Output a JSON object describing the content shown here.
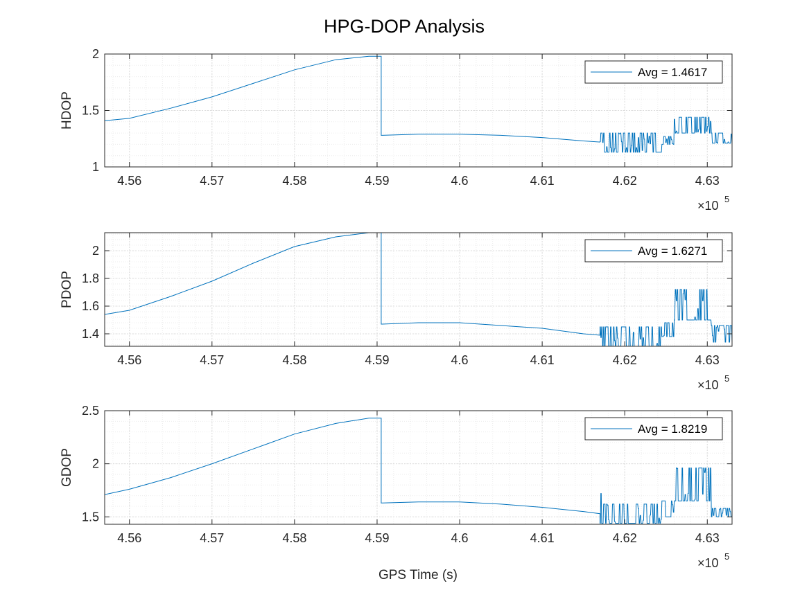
{
  "figure": {
    "title": "HPG-DOP Analysis",
    "xlabel": "GPS Time (s)"
  },
  "colors": {
    "line": "#0072BD",
    "axis": "#262626",
    "grid": "#dcdcdc",
    "minor_grid": "#ececec",
    "background": "#ffffff"
  },
  "chart_data": [
    {
      "type": "line",
      "title": "",
      "xlabel": "",
      "ylabel": "HDOP",
      "x_multiplier_label": "×10",
      "x_multiplier_exponent": "5",
      "xlim": [
        455700,
        463300
      ],
      "ylim": [
        1,
        2
      ],
      "xticks": [
        456000,
        457000,
        458000,
        459000,
        460000,
        461000,
        462000,
        463000
      ],
      "xtick_labels": [
        "4.56",
        "4.57",
        "4.58",
        "4.59",
        "4.6",
        "4.61",
        "4.62",
        "4.63"
      ],
      "yticks": [
        1,
        1.5,
        2
      ],
      "ytick_labels": [
        "1",
        "1.5",
        "2"
      ],
      "grid": true,
      "legend_position": "top-right",
      "series": [
        {
          "name": "Avg = 1.4617",
          "smooth": {
            "x": [
              455700,
              456000,
              456500,
              457000,
              457500,
              458000,
              458500,
              458900,
              459050
            ],
            "y": [
              1.41,
              1.43,
              1.52,
              1.62,
              1.74,
              1.86,
              1.95,
              1.98,
              1.98
            ]
          },
          "mid": {
            "x": [
              459060,
              459500,
              460000,
              460500,
              461000,
              461500,
              461700
            ],
            "y": [
              1.28,
              1.29,
              1.29,
              1.28,
              1.26,
              1.23,
              1.22
            ]
          },
          "noisy": {
            "x_start": 461700,
            "x_end": 463300,
            "segments": [
              {
                "from": 461700,
                "to": 461720,
                "base": 1.13,
                "alt": 1.3
              },
              {
                "from": 461720,
                "to": 462450,
                "base": 1.13,
                "alt": 1.3
              },
              {
                "from": 462450,
                "to": 462600,
                "base": 1.2,
                "alt": 1.27
              },
              {
                "from": 462600,
                "to": 463050,
                "base": 1.3,
                "alt": 1.44
              },
              {
                "from": 463050,
                "to": 463300,
                "base": 1.21,
                "alt": 1.3
              }
            ]
          }
        }
      ]
    },
    {
      "type": "line",
      "title": "",
      "xlabel": "",
      "ylabel": "PDOP",
      "x_multiplier_label": "×10",
      "x_multiplier_exponent": "5",
      "xlim": [
        455700,
        463300
      ],
      "ylim": [
        1.31,
        2.13
      ],
      "xticks": [
        456000,
        457000,
        458000,
        459000,
        460000,
        461000,
        462000,
        463000
      ],
      "xtick_labels": [
        "4.56",
        "4.57",
        "4.58",
        "4.59",
        "4.6",
        "4.61",
        "4.62",
        "4.63"
      ],
      "yticks": [
        1.4,
        1.6,
        1.8,
        2
      ],
      "ytick_labels": [
        "1.4",
        "1.6",
        "1.8",
        "2"
      ],
      "grid": true,
      "legend_position": "top-right",
      "series": [
        {
          "name": "Avg = 1.6271",
          "smooth": {
            "x": [
              455700,
              456000,
              456500,
              457000,
              457500,
              458000,
              458500,
              458900,
              459050
            ],
            "y": [
              1.54,
              1.57,
              1.67,
              1.78,
              1.91,
              2.03,
              2.1,
              2.13,
              2.13
            ]
          },
          "mid": {
            "x": [
              459060,
              459500,
              460000,
              460500,
              461000,
              461500,
              461700
            ],
            "y": [
              1.47,
              1.48,
              1.48,
              1.46,
              1.44,
              1.4,
              1.39
            ]
          },
          "noisy": {
            "x_start": 461700,
            "x_end": 463300,
            "segments": [
              {
                "from": 461700,
                "to": 461720,
                "base": 1.31,
                "alt": 1.45
              },
              {
                "from": 461720,
                "to": 462450,
                "base": 1.31,
                "alt": 1.45
              },
              {
                "from": 462450,
                "to": 462600,
                "base": 1.38,
                "alt": 1.48
              },
              {
                "from": 462600,
                "to": 463050,
                "base": 1.5,
                "alt": 1.72
              },
              {
                "from": 463050,
                "to": 463300,
                "base": 1.34,
                "alt": 1.46
              }
            ]
          }
        }
      ]
    },
    {
      "type": "line",
      "title": "",
      "xlabel": "GPS Time (s)",
      "ylabel": "GDOP",
      "x_multiplier_label": "×10",
      "x_multiplier_exponent": "5",
      "xlim": [
        455700,
        463300
      ],
      "ylim": [
        1.43,
        2.5
      ],
      "xticks": [
        456000,
        457000,
        458000,
        459000,
        460000,
        461000,
        462000,
        463000
      ],
      "xtick_labels": [
        "4.56",
        "4.57",
        "4.58",
        "4.59",
        "4.6",
        "4.61",
        "4.62",
        "4.63"
      ],
      "yticks": [
        1.5,
        2,
        2.5
      ],
      "ytick_labels": [
        "1.5",
        "2",
        "2.5"
      ],
      "grid": true,
      "legend_position": "top-right",
      "series": [
        {
          "name": "Avg = 1.8219",
          "smooth": {
            "x": [
              455700,
              456000,
              456500,
              457000,
              457500,
              458000,
              458500,
              458900,
              459050
            ],
            "y": [
              1.71,
              1.76,
              1.87,
              2.0,
              2.14,
              2.28,
              2.38,
              2.43,
              2.43
            ]
          },
          "mid": {
            "x": [
              459060,
              459500,
              460000,
              460500,
              461000,
              461500,
              461700
            ],
            "y": [
              1.63,
              1.64,
              1.64,
              1.62,
              1.59,
              1.55,
              1.53
            ]
          },
          "noisy": {
            "x_start": 461700,
            "x_end": 463300,
            "segments": [
              {
                "from": 461700,
                "to": 461720,
                "base": 1.44,
                "alt": 1.72
              },
              {
                "from": 461720,
                "to": 462450,
                "base": 1.44,
                "alt": 1.62
              },
              {
                "from": 462450,
                "to": 462600,
                "base": 1.5,
                "alt": 1.65
              },
              {
                "from": 462600,
                "to": 463050,
                "base": 1.65,
                "alt": 1.96
              },
              {
                "from": 463050,
                "to": 463300,
                "base": 1.5,
                "alt": 1.58
              }
            ]
          }
        }
      ]
    }
  ]
}
